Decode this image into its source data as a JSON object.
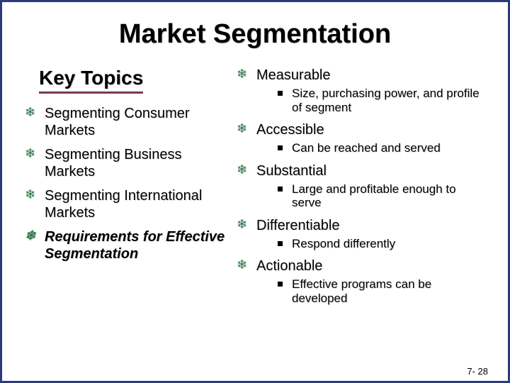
{
  "slide": {
    "title": "Market Segmentation",
    "page_number": "7- 28",
    "border_color": "#2a3a7a",
    "background_color": "#ffffff",
    "left": {
      "header": "Key Topics",
      "header_underline_color": "#7a3a4a",
      "bullet_icon": "snowflake",
      "bullet_color": "#2a7a4a",
      "items": [
        {
          "text": "Segmenting Consumer Markets",
          "emphasis": false
        },
        {
          "text": "Segmenting Business Markets",
          "emphasis": false
        },
        {
          "text": "Segmenting International Markets",
          "emphasis": false
        },
        {
          "text": "Requirements for Effective Segmentation",
          "emphasis": true
        }
      ]
    },
    "right": {
      "bullet_icon": "snowflake",
      "bullet_color": "#2a7a4a",
      "sub_bullet_icon": "square",
      "items": [
        {
          "label": "Measurable",
          "details": [
            "Size, purchasing power, and profile of segment"
          ]
        },
        {
          "label": "Accessible",
          "details": [
            "Can be reached and served"
          ]
        },
        {
          "label": "Substantial",
          "details": [
            "Large and profitable enough to serve"
          ]
        },
        {
          "label": "Differentiable",
          "details": [
            "Respond differently"
          ]
        },
        {
          "label": "Actionable",
          "details": [
            "Effective programs can be developed"
          ]
        }
      ]
    }
  }
}
